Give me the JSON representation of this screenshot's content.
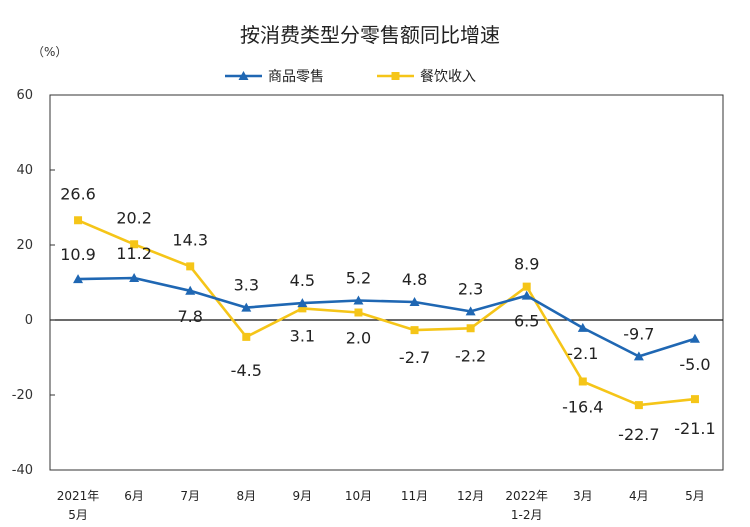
{
  "chart_data": {
    "type": "line",
    "title": "按消费类型分零售额同比增速",
    "unit_label": "（%）",
    "categories": [
      [
        "2021年",
        "5月"
      ],
      [
        "6月"
      ],
      [
        "7月"
      ],
      [
        "8月"
      ],
      [
        "9月"
      ],
      [
        "10月"
      ],
      [
        "11月"
      ],
      [
        "12月"
      ],
      [
        "2022年",
        "1-2月"
      ],
      [
        "3月"
      ],
      [
        "4月"
      ],
      [
        "5月"
      ]
    ],
    "ylim": [
      -40,
      60
    ],
    "yticks": [
      60,
      40,
      20,
      0,
      -20,
      -40
    ],
    "grid": false,
    "legend_position": "top-center",
    "series": [
      {
        "name": "商品零售",
        "color": "#1f67b3",
        "marker": "triangle",
        "values": [
          10.9,
          11.2,
          7.8,
          3.3,
          4.5,
          5.2,
          4.8,
          2.3,
          6.5,
          -2.1,
          -9.7,
          -5.0
        ],
        "labels": [
          "10.9",
          "11.2",
          "7.8",
          "3.3",
          "4.5",
          "5.2",
          "4.8",
          "2.3",
          "6.5",
          "-2.1",
          "-9.7",
          "-5.0"
        ]
      },
      {
        "name": "餐饮收入",
        "color": "#f5c518",
        "marker": "square",
        "values": [
          26.6,
          20.2,
          14.3,
          -4.5,
          3.1,
          2.0,
          -2.7,
          -2.2,
          8.9,
          -16.4,
          -22.7,
          -21.1
        ],
        "labels": [
          "26.6",
          "20.2",
          "14.3",
          "-4.5",
          "3.1",
          "2.0",
          "-2.7",
          "-2.2",
          "8.9",
          "-16.4",
          "-22.7",
          "-21.1"
        ]
      }
    ]
  }
}
